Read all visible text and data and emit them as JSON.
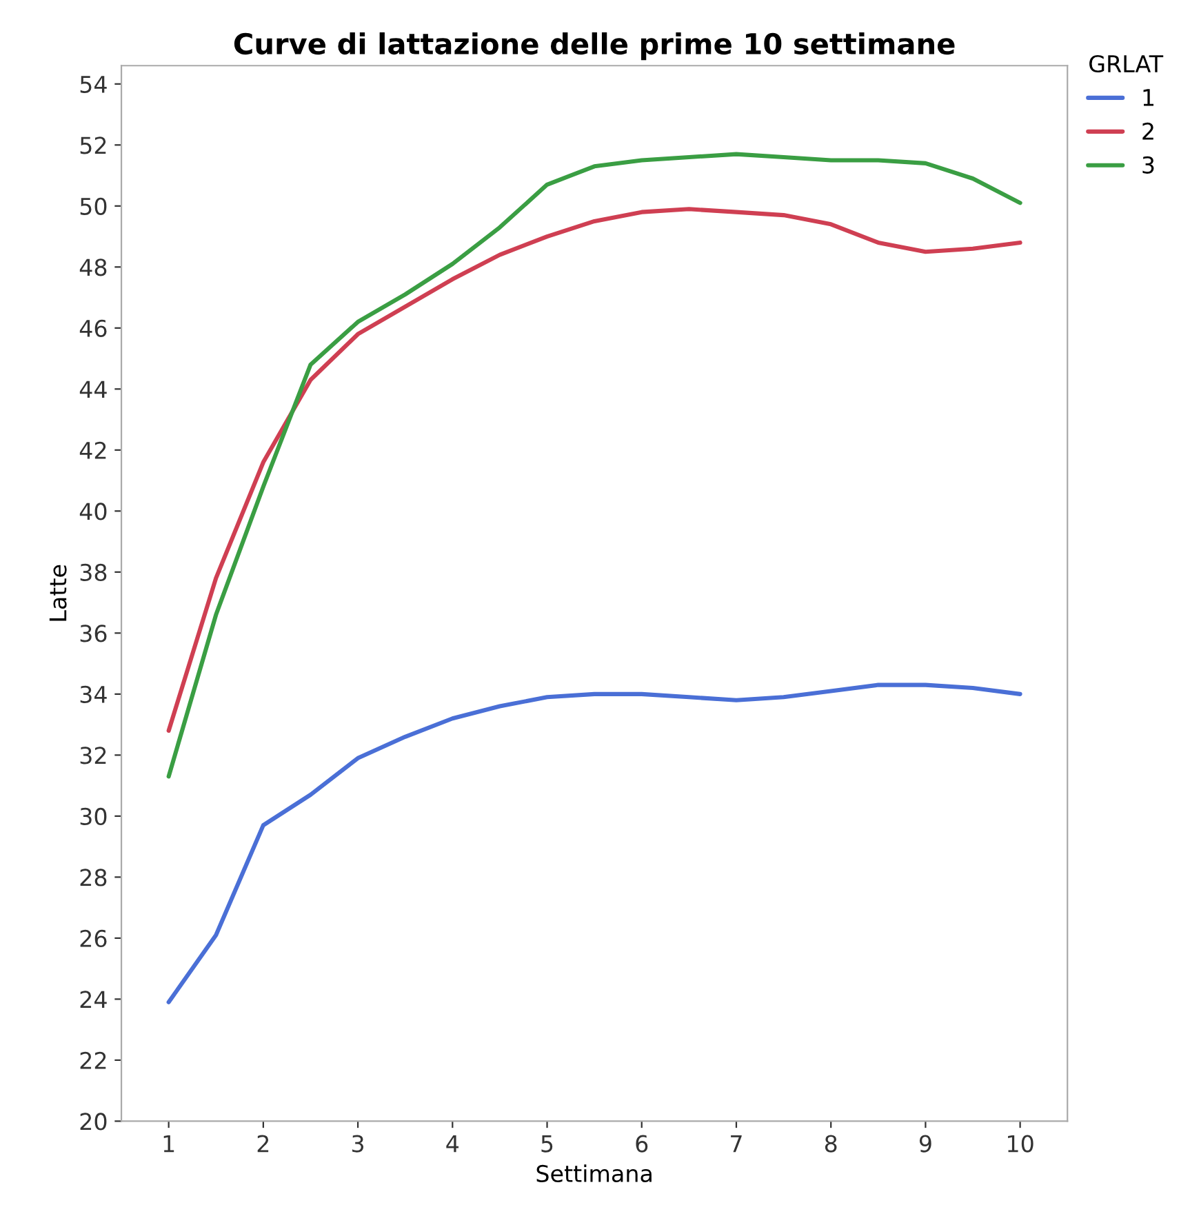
{
  "chart_data": {
    "type": "line",
    "title": "Curve di lattazione delle prime 10 settimane",
    "xlabel": "Settimana",
    "ylabel": "Latte",
    "legend_title": "GRLAT",
    "legend": "top right",
    "grid": false,
    "marker": "none",
    "line_style": "solid",
    "x": [
      1,
      1.5,
      2,
      2.5,
      3,
      3.5,
      4,
      4.5,
      5,
      5.5,
      6,
      6.5,
      7,
      7.5,
      8,
      8.5,
      9,
      9.5,
      10
    ],
    "xlim": [
      0.5,
      10.5
    ],
    "xticks": [
      1,
      2,
      3,
      4,
      5,
      6,
      7,
      8,
      9,
      10
    ],
    "ylim": [
      20,
      54.6
    ],
    "yticks": [
      20,
      22,
      24,
      26,
      28,
      30,
      32,
      34,
      36,
      38,
      40,
      42,
      44,
      46,
      48,
      50,
      52,
      54
    ],
    "series": [
      {
        "name": "1",
        "color": "#4a6fd6",
        "values": [
          23.9,
          26.1,
          29.7,
          30.7,
          31.9,
          32.6,
          33.2,
          33.6,
          33.9,
          34.0,
          34.0,
          33.9,
          33.8,
          33.9,
          34.1,
          34.3,
          34.3,
          34.2,
          34.0
        ]
      },
      {
        "name": "2",
        "color": "#cf3f52",
        "values": [
          32.8,
          37.8,
          41.6,
          44.3,
          45.8,
          46.7,
          47.6,
          48.4,
          49.0,
          49.5,
          49.8,
          49.9,
          49.8,
          49.7,
          49.4,
          48.8,
          48.5,
          48.6,
          48.8
        ]
      },
      {
        "name": "3",
        "color": "#3a9e43",
        "values": [
          31.3,
          36.6,
          40.8,
          44.8,
          46.2,
          47.1,
          48.1,
          49.3,
          50.7,
          51.3,
          51.5,
          51.6,
          51.7,
          51.6,
          51.5,
          51.5,
          51.4,
          50.9,
          50.1
        ]
      }
    ]
  }
}
